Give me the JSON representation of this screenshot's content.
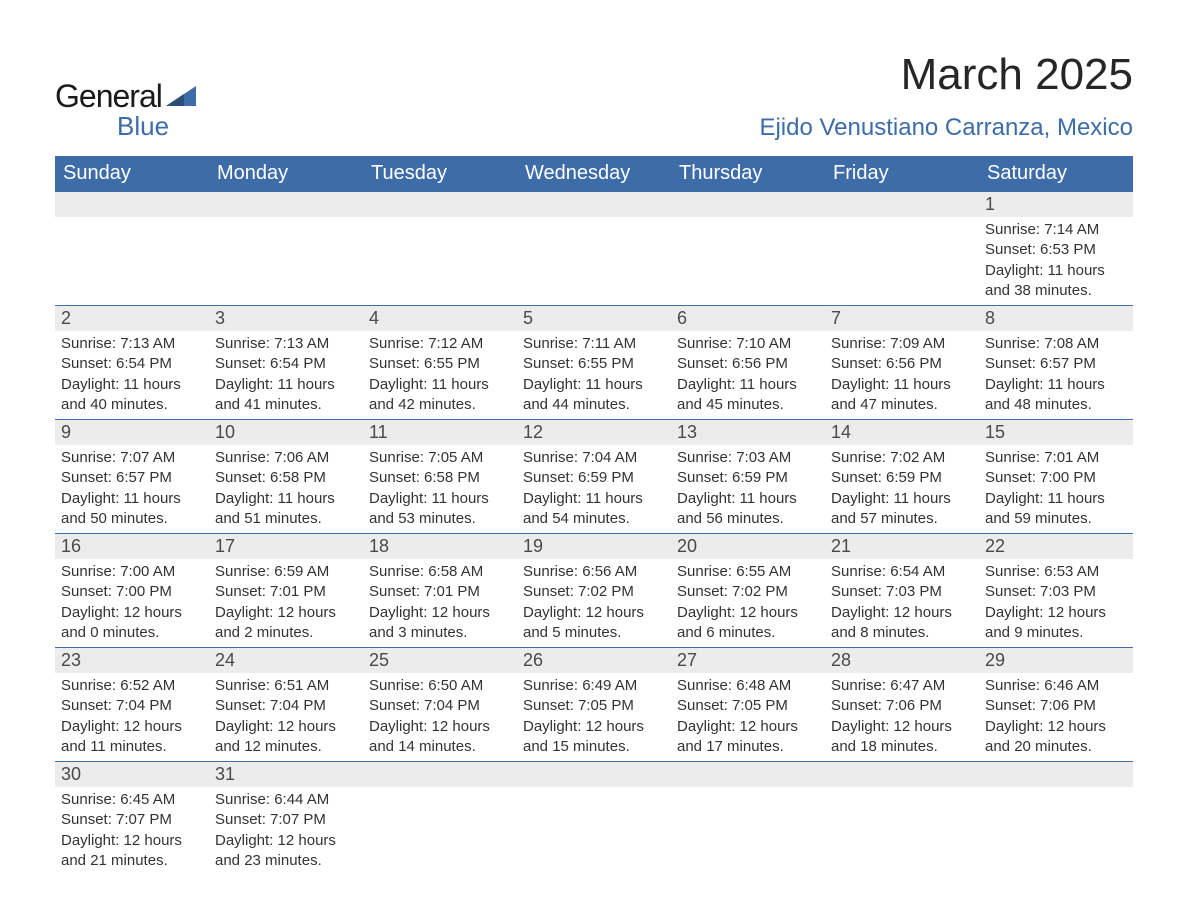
{
  "brand": {
    "general": "General",
    "blue": "Blue"
  },
  "title": "March 2025",
  "location": "Ejido Venustiano Carranza, Mexico",
  "colors": {
    "header_bg": "#3d6ca8",
    "header_text": "#ffffff",
    "daynum_bg": "#ececec",
    "daynum_text": "#4a4a4a",
    "body_text": "#333333",
    "page_bg": "#ffffff",
    "brand_blue": "#3d6ca8",
    "brand_dark": "#1a1a1a"
  },
  "typography": {
    "title_fontsize": 44,
    "location_fontsize": 24,
    "dayheader_fontsize": 20,
    "daynum_fontsize": 18,
    "detail_fontsize": 15
  },
  "dayHeaders": [
    "Sunday",
    "Monday",
    "Tuesday",
    "Wednesday",
    "Thursday",
    "Friday",
    "Saturday"
  ],
  "weeks": [
    {
      "nums": [
        "",
        "",
        "",
        "",
        "",
        "",
        "1"
      ],
      "cells": [
        "",
        "",
        "",
        "",
        "",
        "",
        "Sunrise: 7:14 AM\nSunset: 6:53 PM\nDaylight: 11 hours and 38 minutes."
      ]
    },
    {
      "nums": [
        "2",
        "3",
        "4",
        "5",
        "6",
        "7",
        "8"
      ],
      "cells": [
        "Sunrise: 7:13 AM\nSunset: 6:54 PM\nDaylight: 11 hours and 40 minutes.",
        "Sunrise: 7:13 AM\nSunset: 6:54 PM\nDaylight: 11 hours and 41 minutes.",
        "Sunrise: 7:12 AM\nSunset: 6:55 PM\nDaylight: 11 hours and 42 minutes.",
        "Sunrise: 7:11 AM\nSunset: 6:55 PM\nDaylight: 11 hours and 44 minutes.",
        "Sunrise: 7:10 AM\nSunset: 6:56 PM\nDaylight: 11 hours and 45 minutes.",
        "Sunrise: 7:09 AM\nSunset: 6:56 PM\nDaylight: 11 hours and 47 minutes.",
        "Sunrise: 7:08 AM\nSunset: 6:57 PM\nDaylight: 11 hours and 48 minutes."
      ]
    },
    {
      "nums": [
        "9",
        "10",
        "11",
        "12",
        "13",
        "14",
        "15"
      ],
      "cells": [
        "Sunrise: 7:07 AM\nSunset: 6:57 PM\nDaylight: 11 hours and 50 minutes.",
        "Sunrise: 7:06 AM\nSunset: 6:58 PM\nDaylight: 11 hours and 51 minutes.",
        "Sunrise: 7:05 AM\nSunset: 6:58 PM\nDaylight: 11 hours and 53 minutes.",
        "Sunrise: 7:04 AM\nSunset: 6:59 PM\nDaylight: 11 hours and 54 minutes.",
        "Sunrise: 7:03 AM\nSunset: 6:59 PM\nDaylight: 11 hours and 56 minutes.",
        "Sunrise: 7:02 AM\nSunset: 6:59 PM\nDaylight: 11 hours and 57 minutes.",
        "Sunrise: 7:01 AM\nSunset: 7:00 PM\nDaylight: 11 hours and 59 minutes."
      ]
    },
    {
      "nums": [
        "16",
        "17",
        "18",
        "19",
        "20",
        "21",
        "22"
      ],
      "cells": [
        "Sunrise: 7:00 AM\nSunset: 7:00 PM\nDaylight: 12 hours and 0 minutes.",
        "Sunrise: 6:59 AM\nSunset: 7:01 PM\nDaylight: 12 hours and 2 minutes.",
        "Sunrise: 6:58 AM\nSunset: 7:01 PM\nDaylight: 12 hours and 3 minutes.",
        "Sunrise: 6:56 AM\nSunset: 7:02 PM\nDaylight: 12 hours and 5 minutes.",
        "Sunrise: 6:55 AM\nSunset: 7:02 PM\nDaylight: 12 hours and 6 minutes.",
        "Sunrise: 6:54 AM\nSunset: 7:03 PM\nDaylight: 12 hours and 8 minutes.",
        "Sunrise: 6:53 AM\nSunset: 7:03 PM\nDaylight: 12 hours and 9 minutes."
      ]
    },
    {
      "nums": [
        "23",
        "24",
        "25",
        "26",
        "27",
        "28",
        "29"
      ],
      "cells": [
        "Sunrise: 6:52 AM\nSunset: 7:04 PM\nDaylight: 12 hours and 11 minutes.",
        "Sunrise: 6:51 AM\nSunset: 7:04 PM\nDaylight: 12 hours and 12 minutes.",
        "Sunrise: 6:50 AM\nSunset: 7:04 PM\nDaylight: 12 hours and 14 minutes.",
        "Sunrise: 6:49 AM\nSunset: 7:05 PM\nDaylight: 12 hours and 15 minutes.",
        "Sunrise: 6:48 AM\nSunset: 7:05 PM\nDaylight: 12 hours and 17 minutes.",
        "Sunrise: 6:47 AM\nSunset: 7:06 PM\nDaylight: 12 hours and 18 minutes.",
        "Sunrise: 6:46 AM\nSunset: 7:06 PM\nDaylight: 12 hours and 20 minutes."
      ]
    },
    {
      "nums": [
        "30",
        "31",
        "",
        "",
        "",
        "",
        ""
      ],
      "cells": [
        "Sunrise: 6:45 AM\nSunset: 7:07 PM\nDaylight: 12 hours and 21 minutes.",
        "Sunrise: 6:44 AM\nSunset: 7:07 PM\nDaylight: 12 hours and 23 minutes.",
        "",
        "",
        "",
        "",
        ""
      ]
    }
  ]
}
